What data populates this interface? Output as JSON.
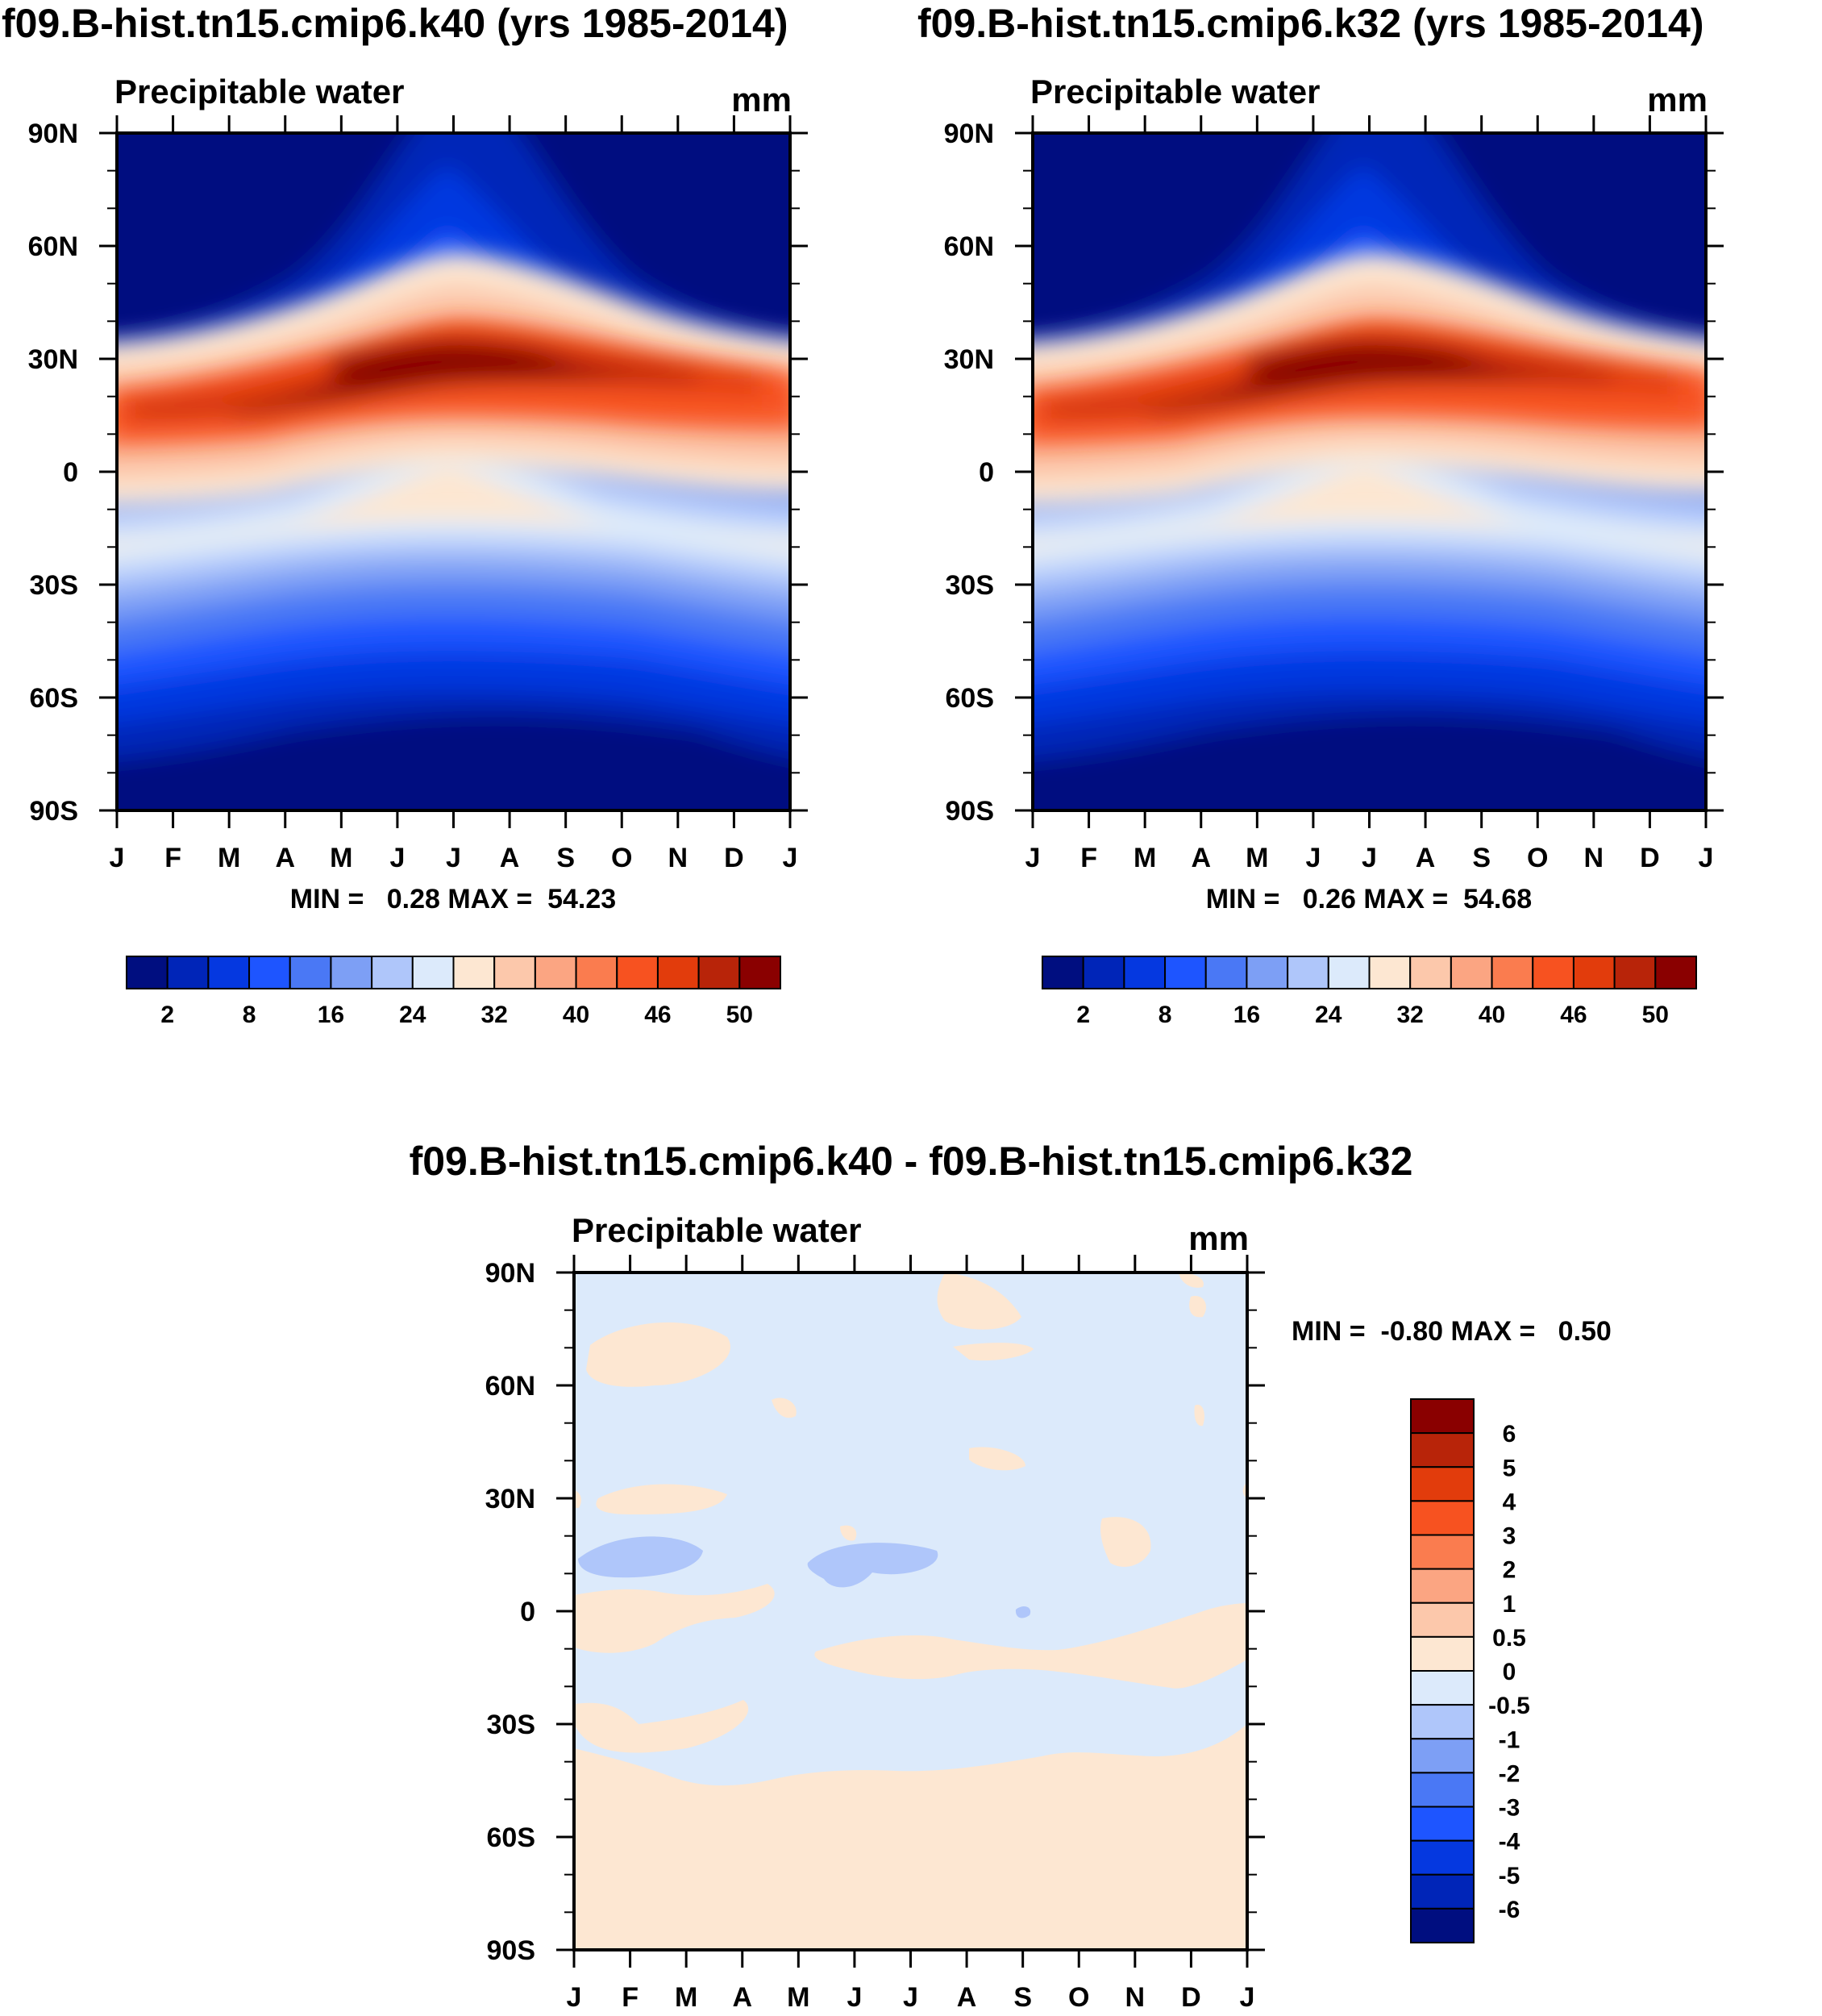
{
  "panels": [
    {
      "id": "k40",
      "title": "f09.B-hist.tn15.cmip6.k40 (yrs 1985-2014)",
      "subtitle": "Precipitable water",
      "units": "mm",
      "stats": "MIN =   0.28 MAX =  54.23"
    },
    {
      "id": "k32",
      "title": "f09.B-hist.tn15.cmip6.k32 (yrs 1985-2014)",
      "subtitle": "Precipitable water",
      "units": "mm",
      "stats": "MIN =   0.26 MAX =  54.68"
    },
    {
      "id": "diff",
      "title": "f09.B-hist.tn15.cmip6.k40 - f09.B-hist.tn15.cmip6.k32",
      "subtitle": "Precipitable water",
      "units": "mm",
      "stats": "MIN =  -0.80 MAX =   0.50"
    }
  ],
  "chart_data": [
    {
      "type": "heatmap",
      "title": "f09.B-hist.tn15.cmip6.k40 (yrs 1985-2014)",
      "subtitle": "Precipitable water",
      "units": "mm",
      "x_tick_labels": [
        "J",
        "F",
        "M",
        "A",
        "M",
        "J",
        "J",
        "A",
        "S",
        "O",
        "N",
        "D",
        "J"
      ],
      "y_tick_labels": [
        "90N",
        "60N",
        "30N",
        "0",
        "30S",
        "60S",
        "90S"
      ],
      "y_range": [
        -90,
        90
      ],
      "min": 0.28,
      "max": 54.23,
      "colorbar": {
        "orientation": "horizontal",
        "labels": [
          "2",
          "8",
          "16",
          "24",
          "32",
          "40",
          "46",
          "50"
        ],
        "colors": [
          "#000e80",
          "#0025b8",
          "#0538e0",
          "#1e55ff",
          "#4a78f5",
          "#7d9ff5",
          "#afc6fa",
          "#dceafb",
          "#fde7d2",
          "#fcc8ab",
          "#fba582",
          "#fa7c4f",
          "#f75220",
          "#e23c0c",
          "#b82409",
          "#8a0000"
        ]
      }
    },
    {
      "type": "heatmap",
      "title": "f09.B-hist.tn15.cmip6.k32 (yrs 1985-2014)",
      "subtitle": "Precipitable water",
      "units": "mm",
      "x_tick_labels": [
        "J",
        "F",
        "M",
        "A",
        "M",
        "J",
        "J",
        "A",
        "S",
        "O",
        "N",
        "D",
        "J"
      ],
      "y_tick_labels": [
        "90N",
        "60N",
        "30N",
        "0",
        "30S",
        "60S",
        "90S"
      ],
      "y_range": [
        -90,
        90
      ],
      "min": 0.26,
      "max": 54.68,
      "colorbar": {
        "orientation": "horizontal",
        "labels": [
          "2",
          "8",
          "16",
          "24",
          "32",
          "40",
          "46",
          "50"
        ],
        "colors": [
          "#000e80",
          "#0025b8",
          "#0538e0",
          "#1e55ff",
          "#4a78f5",
          "#7d9ff5",
          "#afc6fa",
          "#dceafb",
          "#fde7d2",
          "#fcc8ab",
          "#fba582",
          "#fa7c4f",
          "#f75220",
          "#e23c0c",
          "#b82409",
          "#8a0000"
        ]
      }
    },
    {
      "type": "heatmap",
      "title": "f09.B-hist.tn15.cmip6.k40 - f09.B-hist.tn15.cmip6.k32",
      "subtitle": "Precipitable water",
      "units": "mm",
      "x_tick_labels": [
        "J",
        "F",
        "M",
        "A",
        "M",
        "J",
        "J",
        "A",
        "S",
        "O",
        "N",
        "D",
        "J"
      ],
      "y_tick_labels": [
        "90N",
        "60N",
        "30N",
        "0",
        "30S",
        "60S",
        "90S"
      ],
      "y_range": [
        -90,
        90
      ],
      "min": -0.8,
      "max": 0.5,
      "colorbar": {
        "orientation": "vertical",
        "labels": [
          "6",
          "5",
          "4",
          "3",
          "2",
          "1",
          "0.5",
          "0",
          "-0.5",
          "-1",
          "-2",
          "-3",
          "-4",
          "-5",
          "-6"
        ],
        "colors": [
          "#8a0000",
          "#b82409",
          "#e23c0c",
          "#f75220",
          "#fa7c4f",
          "#fba582",
          "#fcc8ab",
          "#fde7d2",
          "#dceafb",
          "#afc6fa",
          "#7d9ff5",
          "#4a78f5",
          "#1e55ff",
          "#0538e0",
          "#0025b8",
          "#000e80"
        ]
      }
    }
  ]
}
